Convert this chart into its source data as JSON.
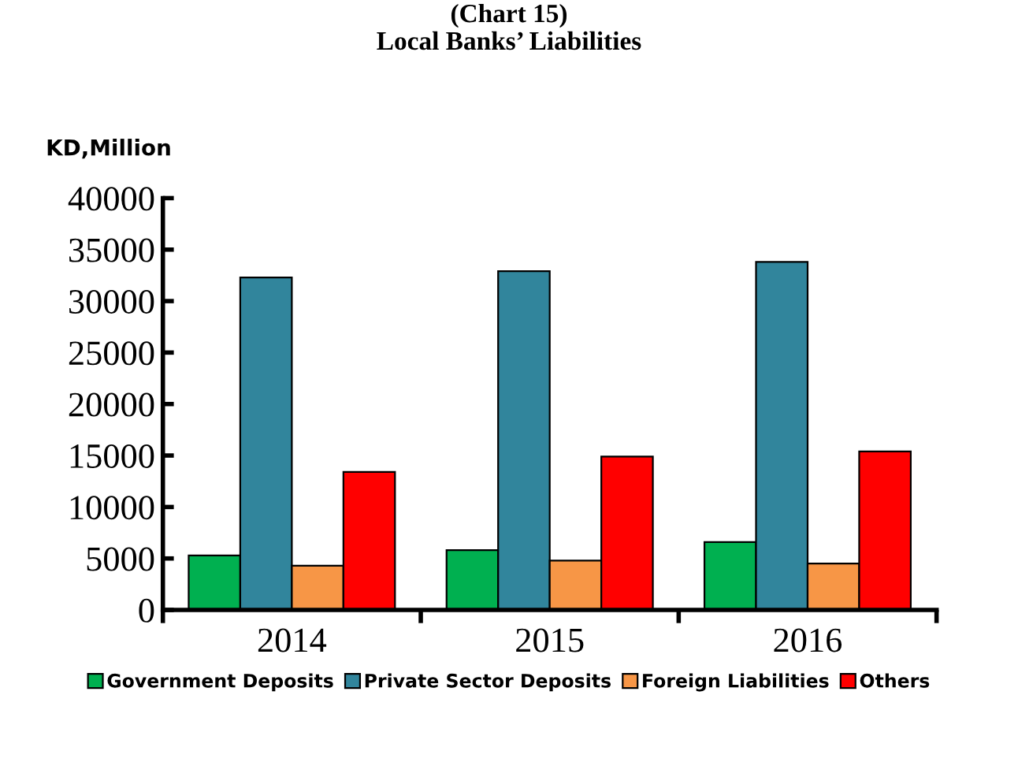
{
  "chart_data": {
    "type": "bar",
    "title": "(Chart 15)\nLocal Banks’ Liabilities",
    "ylabel": "KD,Million",
    "categories": [
      "2014",
      "2015",
      "2016"
    ],
    "series": [
      {
        "name": "Government Deposits",
        "color": "#00b050",
        "values": [
          5300,
          5800,
          6600
        ]
      },
      {
        "name": "Private Sector Deposits",
        "color": "#31859c",
        "values": [
          32300,
          32900,
          33800
        ]
      },
      {
        "name": "Foreign Liabilities",
        "color": "#f79646",
        "values": [
          4300,
          4800,
          4500
        ]
      },
      {
        "name": "Others",
        "color": "#ff0000",
        "values": [
          13400,
          14900,
          15400
        ]
      }
    ],
    "ylim": [
      0,
      40000
    ],
    "yticks": [
      0,
      5000,
      10000,
      15000,
      20000,
      25000,
      30000,
      35000,
      40000
    ],
    "grid": false,
    "legend": "bottom"
  }
}
